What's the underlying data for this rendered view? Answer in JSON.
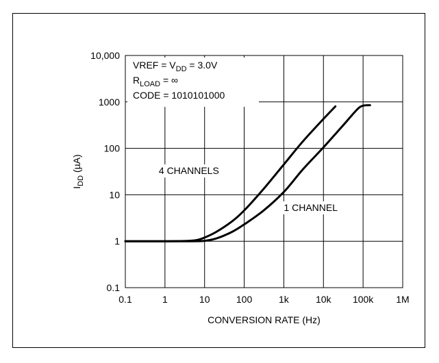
{
  "chart_data": {
    "type": "line",
    "title": "",
    "xlabel": "CONVERSION RATE (Hz)",
    "ylabel": {
      "main": "I",
      "sub": "DD",
      "unit": " (µA)"
    },
    "xscale": "log",
    "yscale": "log",
    "xlim": [
      0.1,
      1000000
    ],
    "ylim": [
      0.1,
      10000
    ],
    "grid": true,
    "x_ticks": [
      {
        "value": 0.1,
        "label": "0.1"
      },
      {
        "value": 1,
        "label": "1"
      },
      {
        "value": 10,
        "label": "10"
      },
      {
        "value": 100,
        "label": "100"
      },
      {
        "value": 1000,
        "label": "1k"
      },
      {
        "value": 10000,
        "label": "10k"
      },
      {
        "value": 100000,
        "label": "100k"
      },
      {
        "value": 1000000,
        "label": "1M"
      }
    ],
    "y_ticks": [
      {
        "value": 0.1,
        "label": "0.1"
      },
      {
        "value": 1,
        "label": "1"
      },
      {
        "value": 10,
        "label": "10"
      },
      {
        "value": 100,
        "label": "100"
      },
      {
        "value": 1000,
        "label": "1000"
      },
      {
        "value": 10000,
        "label": "10,000"
      }
    ],
    "conditions": [
      {
        "parts": [
          {
            "t": "VREF = V"
          },
          {
            "t": "DD",
            "sub": true
          },
          {
            "t": " = 3.0V"
          }
        ]
      },
      {
        "parts": [
          {
            "t": "R"
          },
          {
            "t": "LOAD",
            "sub": true
          },
          {
            "t": " = ∞"
          }
        ]
      },
      {
        "parts": [
          {
            "t": "CODE = 1010101000"
          }
        ]
      }
    ],
    "series": [
      {
        "name": "4 CHANNELS",
        "label_at": {
          "x": 0.7,
          "y": 28
        },
        "points": [
          [
            0.1,
            1
          ],
          [
            1,
            1
          ],
          [
            3,
            1.01
          ],
          [
            6,
            1.05
          ],
          [
            10,
            1.2
          ],
          [
            20,
            1.6
          ],
          [
            50,
            2.7
          ],
          [
            100,
            4.6
          ],
          [
            300,
            13
          ],
          [
            1000,
            45
          ],
          [
            3000,
            140
          ],
          [
            10000,
            430
          ],
          [
            20000,
            800
          ]
        ]
      },
      {
        "name": "1 CHANNEL",
        "label_at": {
          "x": 1000,
          "y": 4.5
        },
        "points": [
          [
            0.1,
            1
          ],
          [
            1,
            1
          ],
          [
            5,
            1
          ],
          [
            10,
            1.02
          ],
          [
            20,
            1.15
          ],
          [
            50,
            1.6
          ],
          [
            100,
            2.3
          ],
          [
            300,
            4.5
          ],
          [
            1000,
            11.5
          ],
          [
            3000,
            35
          ],
          [
            10000,
            105
          ],
          [
            30000,
            300
          ],
          [
            70000,
            680
          ],
          [
            100000,
            830
          ],
          [
            150000,
            850
          ]
        ]
      }
    ]
  }
}
